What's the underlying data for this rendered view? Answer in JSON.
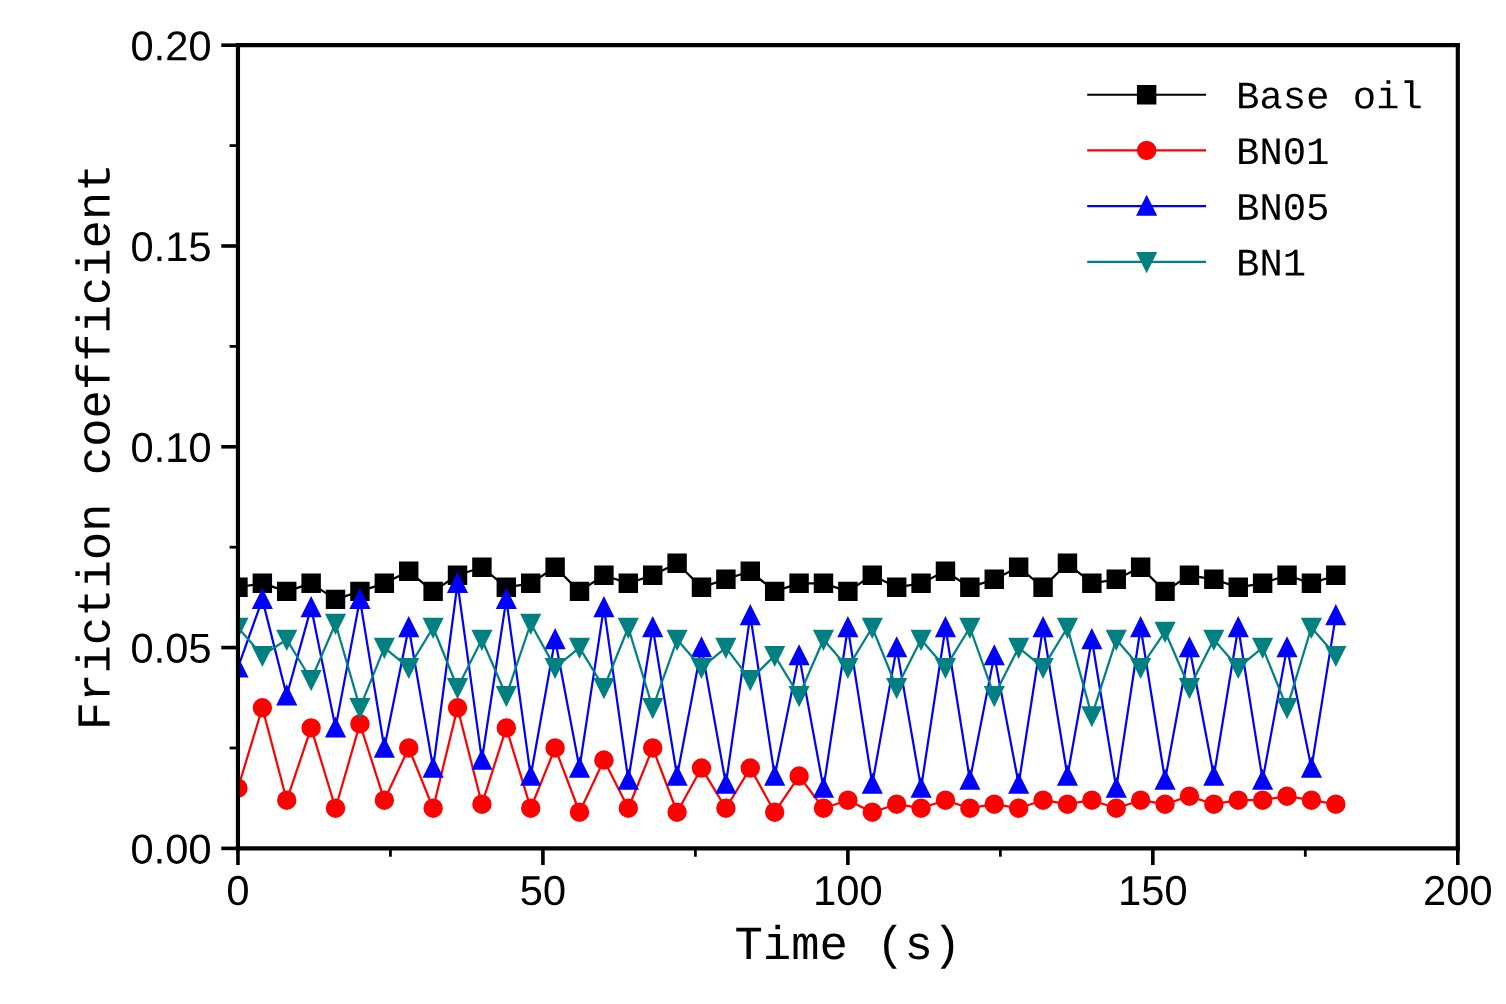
{
  "chart_data": {
    "type": "line",
    "xlabel": "Time (s)",
    "ylabel": "Friction coefficient",
    "x": [
      0,
      4,
      8,
      12,
      16,
      20,
      24,
      28,
      32,
      36,
      40,
      44,
      48,
      52,
      56,
      60,
      64,
      68,
      72,
      76,
      80,
      84,
      88,
      92,
      96,
      100,
      104,
      108,
      112,
      116,
      120,
      124,
      128,
      132,
      136,
      140,
      144,
      148,
      152,
      156,
      160,
      164,
      168,
      172,
      176,
      180
    ],
    "xlim": [
      0,
      200
    ],
    "ylim": [
      0,
      0.2
    ],
    "xticks": [
      0,
      {
        "value": 25,
        "label": null
      },
      50,
      {
        "value": 75,
        "label": null
      },
      100,
      {
        "value": 125,
        "label": null
      },
      150,
      {
        "value": 175,
        "label": null
      },
      200
    ],
    "yticks": [
      {
        "value": 0,
        "label": "0.00"
      },
      {
        "value": 0.025,
        "label": null
      },
      {
        "value": 0.05,
        "label": "0.05"
      },
      {
        "value": 0.075,
        "label": null
      },
      {
        "value": 0.1,
        "label": "0.10"
      },
      {
        "value": 0.125,
        "label": null
      },
      {
        "value": 0.15,
        "label": "0.15"
      },
      {
        "value": 0.175,
        "label": null
      },
      {
        "value": 0.2,
        "label": "0.20"
      }
    ],
    "grid": false,
    "legend": "top right",
    "line_style": "solid",
    "series": [
      {
        "name": "Base oil",
        "color": "#000000",
        "marker": "square",
        "values": [
          0.065,
          0.066,
          0.064,
          0.066,
          0.062,
          0.064,
          0.066,
          0.069,
          0.064,
          0.068,
          0.07,
          0.065,
          0.066,
          0.07,
          0.064,
          0.068,
          0.066,
          0.068,
          0.071,
          0.065,
          0.067,
          0.069,
          0.064,
          0.066,
          0.066,
          0.064,
          0.068,
          0.065,
          0.066,
          0.069,
          0.065,
          0.067,
          0.07,
          0.065,
          0.071,
          0.066,
          0.067,
          0.07,
          0.064,
          0.068,
          0.067,
          0.065,
          0.066,
          0.068,
          0.066,
          0.068
        ]
      },
      {
        "name": "BN01",
        "color": "#ff0000",
        "marker": "circle",
        "values": [
          0.015,
          0.035,
          0.012,
          0.03,
          0.01,
          0.031,
          0.012,
          0.025,
          0.01,
          0.035,
          0.011,
          0.03,
          0.01,
          0.025,
          0.009,
          0.022,
          0.01,
          0.025,
          0.009,
          0.02,
          0.01,
          0.02,
          0.009,
          0.018,
          0.01,
          0.012,
          0.009,
          0.011,
          0.01,
          0.012,
          0.01,
          0.011,
          0.01,
          0.012,
          0.011,
          0.012,
          0.01,
          0.012,
          0.011,
          0.013,
          0.011,
          0.012,
          0.012,
          0.013,
          0.012,
          0.011
        ]
      },
      {
        "name": "BN05",
        "color": "#0000ff",
        "marker": "triangle",
        "values": [
          0.045,
          0.062,
          0.038,
          0.06,
          0.03,
          0.062,
          0.025,
          0.055,
          0.02,
          0.066,
          0.022,
          0.062,
          0.018,
          0.052,
          0.02,
          0.06,
          0.017,
          0.055,
          0.018,
          0.05,
          0.016,
          0.058,
          0.018,
          0.048,
          0.015,
          0.055,
          0.016,
          0.05,
          0.015,
          0.055,
          0.017,
          0.048,
          0.016,
          0.055,
          0.018,
          0.052,
          0.015,
          0.055,
          0.017,
          0.05,
          0.018,
          0.055,
          0.017,
          0.05,
          0.02,
          0.058
        ]
      },
      {
        "name": "BN1",
        "color": "#008080",
        "marker": "triangle_down",
        "values": [
          0.055,
          0.048,
          0.052,
          0.042,
          0.056,
          0.035,
          0.05,
          0.045,
          0.055,
          0.04,
          0.052,
          0.038,
          0.056,
          0.045,
          0.05,
          0.04,
          0.055,
          0.035,
          0.052,
          0.045,
          0.05,
          0.042,
          0.048,
          0.038,
          0.052,
          0.045,
          0.055,
          0.04,
          0.052,
          0.045,
          0.055,
          0.038,
          0.05,
          0.045,
          0.055,
          0.033,
          0.052,
          0.045,
          0.054,
          0.04,
          0.052,
          0.045,
          0.05,
          0.035,
          0.055,
          0.048
        ]
      }
    ]
  }
}
